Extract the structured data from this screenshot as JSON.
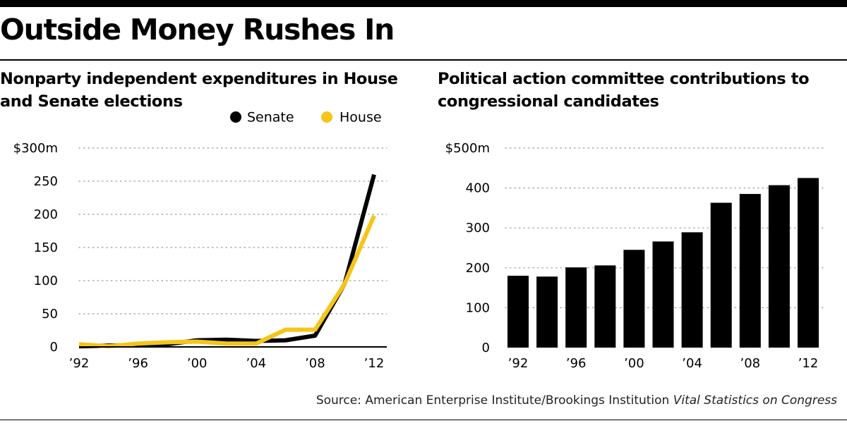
{
  "page": {
    "title": "Outside Money Rushes In",
    "source_prefix": "Source: American Enterprise Institute/Brookings Institution ",
    "source_italic": "Vital Statistics on Congress"
  },
  "chart_data": [
    {
      "type": "line",
      "title": "Nonparty independent expenditures in House and Senate elections",
      "x": [
        1992,
        1994,
        1996,
        1998,
        2000,
        2002,
        2004,
        2006,
        2008,
        2010,
        2012
      ],
      "xtick_values": [
        1992,
        1996,
        2000,
        2004,
        2008,
        2012
      ],
      "xtick_labels": [
        "’92",
        "’96",
        "’00",
        "’04",
        "’08",
        "’12"
      ],
      "yticks": [
        0,
        50,
        100,
        150,
        200,
        250,
        300
      ],
      "ytick_labels": [
        "0",
        "50",
        "100",
        "150",
        "200",
        "250",
        "$300m"
      ],
      "ylim": [
        0,
        300
      ],
      "xlim": [
        1992,
        2012
      ],
      "grid": true,
      "legend": "top-right",
      "series": [
        {
          "name": "Senate",
          "color": "#000000",
          "values": [
            1,
            2,
            3,
            4,
            10,
            11,
            9,
            10,
            17,
            95,
            260
          ]
        },
        {
          "name": "House",
          "color": "#f5c518",
          "values": [
            4,
            1,
            5,
            7,
            8,
            5,
            5,
            26,
            26,
            95,
            198
          ]
        }
      ]
    },
    {
      "type": "bar",
      "title": "Political action committee contributions to congressional candidates",
      "categories": [
        1992,
        1994,
        1996,
        1998,
        2000,
        2002,
        2004,
        2006,
        2008,
        2010,
        2012
      ],
      "values": [
        180,
        178,
        201,
        206,
        245,
        266,
        289,
        363,
        385,
        407,
        425
      ],
      "xtick_values": [
        1992,
        1996,
        2000,
        2004,
        2008,
        2012
      ],
      "xtick_labels": [
        "’92",
        "’96",
        "’00",
        "’04",
        "’08",
        "’12"
      ],
      "yticks": [
        0,
        100,
        200,
        300,
        400,
        500
      ],
      "ytick_labels": [
        "0",
        "100",
        "200",
        "300",
        "400",
        "$500m"
      ],
      "ylim": [
        0,
        500
      ],
      "grid": true,
      "bar_color": "#000000"
    }
  ]
}
